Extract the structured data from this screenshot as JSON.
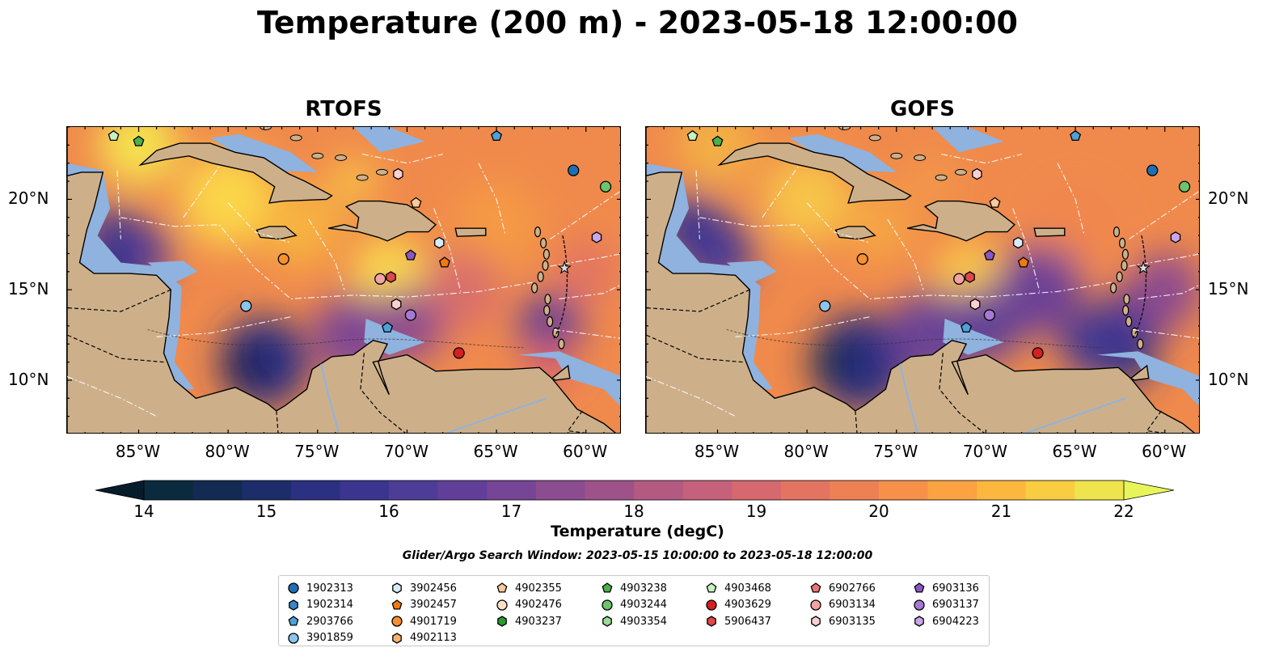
{
  "title": "Temperature (200 m) - 2023-05-18 12:00:00",
  "panels": [
    {
      "title": "RTOFS"
    },
    {
      "title": "GOFS"
    }
  ],
  "x_ticks": [
    "85°W",
    "80°W",
    "75°W",
    "70°W",
    "65°W",
    "60°W"
  ],
  "y_ticks": [
    "20°N",
    "15°N",
    "10°N"
  ],
  "map_extent": {
    "lon": [
      -89,
      -58
    ],
    "lat": [
      7,
      24
    ]
  },
  "colorbar": {
    "label": "Temperature (degC)",
    "ticks": [
      "14",
      "15",
      "16",
      "17",
      "18",
      "19",
      "20",
      "21",
      "22"
    ],
    "range": [
      14,
      22
    ],
    "colors": [
      "#0b2a3e",
      "#132a52",
      "#1c2d6a",
      "#2b3080",
      "#3b3590",
      "#4d3d97",
      "#613f98",
      "#764595",
      "#8b4c90",
      "#9e528a",
      "#b35a83",
      "#c5617b",
      "#d6686f",
      "#e37461",
      "#ee8154",
      "#f79149",
      "#fba241",
      "#fcb73e",
      "#f9cd42",
      "#f0e44e"
    ],
    "under_color": "#061c2a",
    "over_color": "#e8f55a"
  },
  "search_window": "Glider/Argo Search Window: 2023-05-15 10:00:00 to 2023-05-18 12:00:00",
  "legend": [
    [
      {
        "id": "1902313",
        "color": "#1f6fb5",
        "marker": "circle"
      },
      {
        "id": "1902314",
        "color": "#3a86c8",
        "marker": "hexagon"
      },
      {
        "id": "2903766",
        "color": "#4f9fd8",
        "marker": "pentagon"
      },
      {
        "id": "3901859",
        "color": "#8cc4ec",
        "marker": "circle"
      }
    ],
    [
      {
        "id": "3902456",
        "color": "#d6ecfb",
        "marker": "hexagon"
      },
      {
        "id": "3902457",
        "color": "#f07a10",
        "marker": "pentagon"
      },
      {
        "id": "4901719",
        "color": "#f69030",
        "marker": "circle"
      },
      {
        "id": "4902113",
        "color": "#f9b070",
        "marker": "hexagon"
      }
    ],
    [
      {
        "id": "4902355",
        "color": "#fbc99a",
        "marker": "pentagon"
      },
      {
        "id": "4902476",
        "color": "#fde1c6",
        "marker": "circle"
      },
      {
        "id": "4903237",
        "color": "#2a9a2e",
        "marker": "hexagon"
      }
    ],
    [
      {
        "id": "4903238",
        "color": "#4db04a",
        "marker": "pentagon"
      },
      {
        "id": "4903244",
        "color": "#6cc46a",
        "marker": "circle"
      },
      {
        "id": "4903354",
        "color": "#9ad996",
        "marker": "hexagon"
      }
    ],
    [
      {
        "id": "4903468",
        "color": "#c8f0c2",
        "marker": "pentagon"
      },
      {
        "id": "4903629",
        "color": "#d62020",
        "marker": "circle"
      },
      {
        "id": "5906437",
        "color": "#e04848",
        "marker": "hexagon"
      }
    ],
    [
      {
        "id": "6902766",
        "color": "#ea7474",
        "marker": "pentagon"
      },
      {
        "id": "6903134",
        "color": "#f4a3a3",
        "marker": "circle"
      },
      {
        "id": "6903135",
        "color": "#fbd0d0",
        "marker": "hexagon"
      }
    ],
    [
      {
        "id": "6903136",
        "color": "#8a56c2",
        "marker": "pentagon"
      },
      {
        "id": "6903137",
        "color": "#a679d4",
        "marker": "circle"
      },
      {
        "id": "6904223",
        "color": "#c9a6ea",
        "marker": "hexagon"
      }
    ]
  ],
  "floats": [
    {
      "id": "4903468",
      "lon": -86.4,
      "lat": 23.5
    },
    {
      "id": "4903238",
      "lon": -85.0,
      "lat": 23.2
    },
    {
      "id": "2903766",
      "lon": -65.0,
      "lat": 23.5
    },
    {
      "id": "1902313",
      "lon": -60.7,
      "lat": 21.6
    },
    {
      "id": "4903244",
      "lon": -58.9,
      "lat": 20.7
    },
    {
      "id": "6903135",
      "lon": -70.5,
      "lat": 21.4
    },
    {
      "id": "4902355",
      "lon": -69.5,
      "lat": 19.8
    },
    {
      "id": "3902456",
      "lon": -68.2,
      "lat": 17.6
    },
    {
      "id": "6904223",
      "lon": -59.4,
      "lat": 17.9
    },
    {
      "id": "4901719",
      "lon": -76.9,
      "lat": 16.7
    },
    {
      "id": "6903136",
      "lon": -69.8,
      "lat": 16.9
    },
    {
      "id": "3902457",
      "lon": -67.9,
      "lat": 16.5
    },
    {
      "id": "6903134",
      "lon": -71.5,
      "lat": 15.6
    },
    {
      "id": "5906437",
      "lon": -70.9,
      "lat": 15.7
    },
    {
      "id": "3901859",
      "lon": -79.0,
      "lat": 14.1
    },
    {
      "id": "6903135",
      "lon": -70.6,
      "lat": 14.2
    },
    {
      "id": "6903137",
      "lon": -69.8,
      "lat": 13.6
    },
    {
      "id": "2903766",
      "lon": -71.1,
      "lat": 12.9
    },
    {
      "id": "4903629",
      "lon": -67.1,
      "lat": 11.5
    }
  ]
}
